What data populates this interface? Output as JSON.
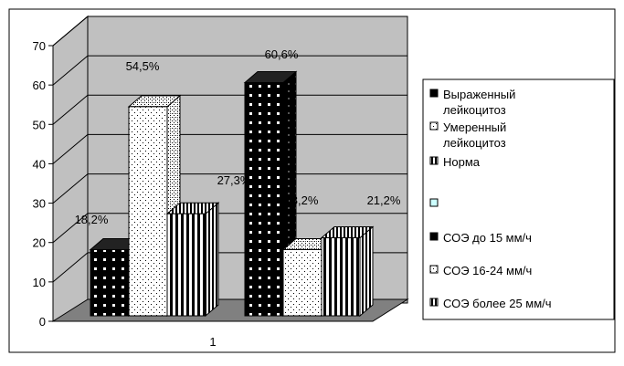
{
  "chart_data": {
    "type": "bar",
    "subtype": "3d-clustered",
    "categories": [
      "1"
    ],
    "ylim": [
      0,
      70
    ],
    "yticks": [
      "0",
      "10",
      "20",
      "30",
      "40",
      "50",
      "60",
      "70"
    ],
    "grid": true,
    "legend_position": "right",
    "series": [
      {
        "name": "Выраженный лейкоцитоз",
        "group": 0,
        "value": 18.2,
        "label": "18,2%",
        "pattern": "black-dots",
        "fill": "#000000"
      },
      {
        "name": "Умеренный лейкоцитоз",
        "group": 0,
        "value": 54.5,
        "label": "54,5%",
        "pattern": "speckle",
        "fill": "#ffffff"
      },
      {
        "name": "Норма",
        "group": 0,
        "value": 27.3,
        "label": "27,3%",
        "pattern": "vertical-stripes",
        "fill": "#ffffff"
      },
      {
        "name": "",
        "group": null,
        "value": null,
        "label": "",
        "pattern": "solid-light",
        "fill": "#ccffff"
      },
      {
        "name": "СОЭ до 15 мм/ч",
        "group": 1,
        "value": 60.6,
        "label": "60,6%",
        "pattern": "black-dots",
        "fill": "#000000"
      },
      {
        "name": "СОЭ 16-24 мм/ч",
        "group": 1,
        "value": 18.2,
        "label": "18,2%",
        "pattern": "speckle",
        "fill": "#ffffff"
      },
      {
        "name": "СОЭ более 25 мм/ч",
        "group": 1,
        "value": 21.2,
        "label": "21,2%",
        "pattern": "vertical-stripes",
        "fill": "#ffffff"
      }
    ],
    "colors": {
      "wall": "#c0c0c0",
      "floor": "#808080",
      "bar_dark": "#000000",
      "bar_light": "#ffffff",
      "empty_entry": "#ccffff"
    }
  }
}
